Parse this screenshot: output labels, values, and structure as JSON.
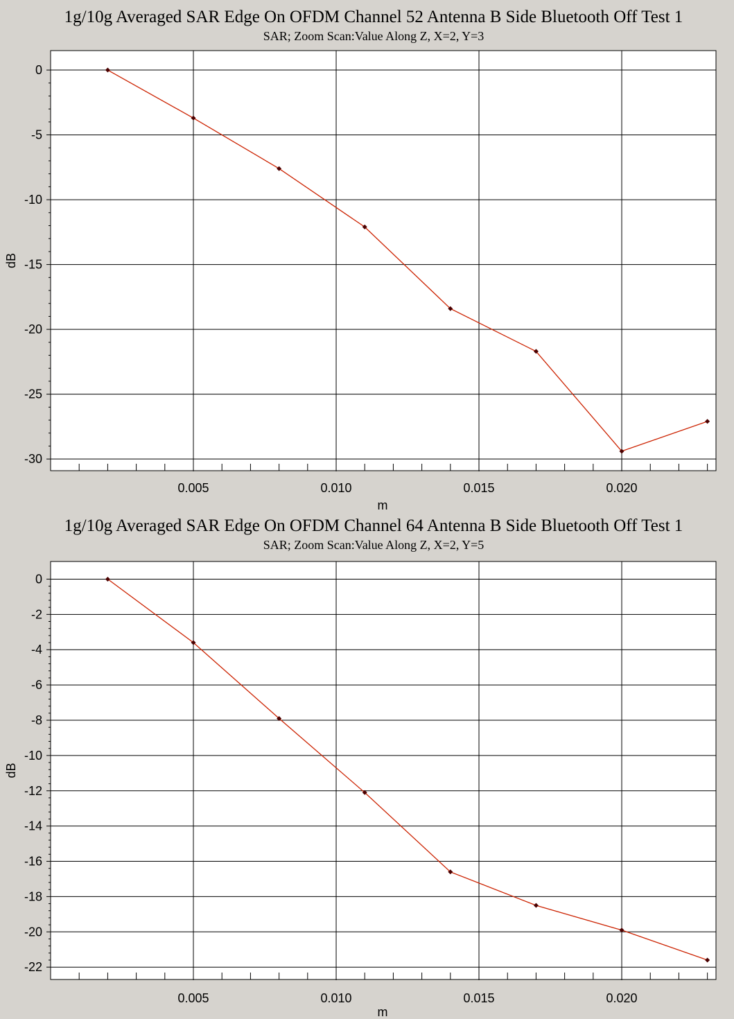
{
  "chart_data": [
    {
      "type": "line",
      "title": "1g/10g Averaged SAR Edge On OFDM Channel 52 Antenna B Side Bluetooth Off Test 1",
      "subtitle": "SAR; Zoom Scan:Value Along Z, X=2, Y=3",
      "xlabel": "m",
      "ylabel": "dB",
      "xlim": [
        0.0,
        0.0233
      ],
      "ylim": [
        -30.9,
        1.5
      ],
      "x_ticks": [
        0.005,
        0.01,
        0.015,
        0.02
      ],
      "x_tick_labels": [
        "0.005",
        "0.010",
        "0.015",
        "0.020"
      ],
      "y_ticks": [
        0,
        -5,
        -10,
        -15,
        -20,
        -25,
        -30
      ],
      "y_tick_labels": [
        "0",
        "-5",
        "-10",
        "-15",
        "-20",
        "-25",
        "-30"
      ],
      "grid": true,
      "line_color": "#cc2200",
      "marker_color": "#4a0000",
      "background": "#ffffff",
      "series": [
        {
          "x": [
            0.002,
            0.005,
            0.008,
            0.011,
            0.014,
            0.017,
            0.02,
            0.023
          ],
          "values": [
            0,
            -3.7,
            -7.6,
            -12.1,
            -18.4,
            -21.7,
            -29.4,
            -27.1
          ]
        }
      ]
    },
    {
      "type": "line",
      "title": "1g/10g Averaged SAR Edge On OFDM Channel 64 Antenna B Side Bluetooth Off Test 1",
      "subtitle": "SAR; Zoom Scan:Value Along Z, X=2, Y=5",
      "xlabel": "m",
      "ylabel": "dB",
      "xlim": [
        0.0,
        0.0233
      ],
      "ylim": [
        -22.7,
        1.0
      ],
      "x_ticks": [
        0.005,
        0.01,
        0.015,
        0.02
      ],
      "x_tick_labels": [
        "0.005",
        "0.010",
        "0.015",
        "0.020"
      ],
      "y_ticks": [
        0,
        -2,
        -4,
        -6,
        -8,
        -10,
        -12,
        -14,
        -16,
        -18,
        -20,
        -22
      ],
      "y_tick_labels": [
        "0",
        "-2",
        "-4",
        "-6",
        "-8",
        "-10",
        "-12",
        "-14",
        "-16",
        "-18",
        "-20",
        "-22"
      ],
      "grid": true,
      "line_color": "#cc2200",
      "marker_color": "#4a0000",
      "background": "#ffffff",
      "series": [
        {
          "x": [
            0.002,
            0.005,
            0.008,
            0.011,
            0.014,
            0.017,
            0.02,
            0.023
          ],
          "values": [
            0,
            -3.6,
            -7.9,
            -12.1,
            -16.6,
            -18.5,
            -19.9,
            -21.6
          ]
        }
      ]
    }
  ]
}
